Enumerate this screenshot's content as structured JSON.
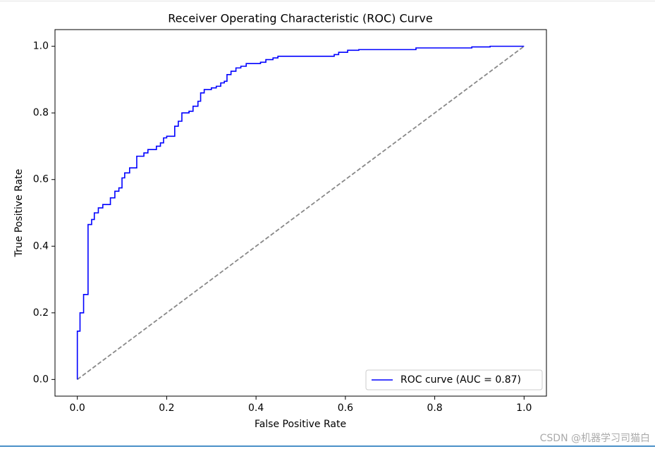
{
  "chart_data": {
    "type": "line",
    "title": "Receiver Operating Characteristic (ROC) Curve",
    "xlabel": "False Positive Rate",
    "ylabel": "True Positive Rate",
    "xlim": [
      -0.05,
      1.05
    ],
    "ylim": [
      -0.05,
      1.05
    ],
    "xticks": [
      {
        "value": 0,
        "label": "0.0"
      },
      0.2,
      0.4,
      0.6,
      0.8,
      {
        "value": 1,
        "label": "1.0"
      }
    ],
    "yticks": [
      {
        "value": 0,
        "label": "0.0"
      },
      0.2,
      0.4,
      0.6,
      0.8,
      {
        "value": 1,
        "label": "1.0"
      }
    ],
    "legend": "lower right",
    "series": [
      {
        "name": "ROC curve (AUC = 0.87)",
        "color": "#0000ff",
        "style": "solid",
        "x": [
          0,
          0,
          0.006,
          0.006,
          0.014,
          0.014,
          0.024,
          0.024,
          0.032,
          0.032,
          0.038,
          0.038,
          0.047,
          0.047,
          0.057,
          0.057,
          0.074,
          0.074,
          0.084,
          0.084,
          0.093,
          0.093,
          0.1,
          0.1,
          0.106,
          0.106,
          0.117,
          0.117,
          0.133,
          0.133,
          0.149,
          0.149,
          0.158,
          0.158,
          0.177,
          0.177,
          0.186,
          0.186,
          0.193,
          0.193,
          0.2,
          0.2,
          0.218,
          0.218,
          0.226,
          0.226,
          0.234,
          0.234,
          0.25,
          0.25,
          0.259,
          0.259,
          0.27,
          0.27,
          0.276,
          0.276,
          0.284,
          0.284,
          0.3,
          0.3,
          0.311,
          0.311,
          0.321,
          0.321,
          0.329,
          0.329,
          0.335,
          0.335,
          0.344,
          0.344,
          0.355,
          0.355,
          0.366,
          0.366,
          0.378,
          0.378,
          0.41,
          0.41,
          0.422,
          0.422,
          0.438,
          0.438,
          0.449,
          0.449,
          0.575,
          0.575,
          0.585,
          0.585,
          0.605,
          0.605,
          0.63,
          0.63,
          0.758,
          0.758,
          0.883,
          0.883,
          0.924,
          0.924,
          1
        ],
        "values": [
          0,
          0.145,
          0.145,
          0.2,
          0.2,
          0.255,
          0.255,
          0.465,
          0.465,
          0.48,
          0.48,
          0.5,
          0.5,
          0.515,
          0.515,
          0.525,
          0.525,
          0.545,
          0.545,
          0.565,
          0.565,
          0.575,
          0.575,
          0.605,
          0.605,
          0.62,
          0.62,
          0.635,
          0.635,
          0.67,
          0.67,
          0.68,
          0.68,
          0.69,
          0.69,
          0.7,
          0.7,
          0.71,
          0.71,
          0.725,
          0.725,
          0.73,
          0.73,
          0.76,
          0.76,
          0.775,
          0.775,
          0.8,
          0.8,
          0.805,
          0.805,
          0.82,
          0.82,
          0.835,
          0.835,
          0.86,
          0.86,
          0.87,
          0.87,
          0.875,
          0.875,
          0.88,
          0.88,
          0.89,
          0.89,
          0.895,
          0.895,
          0.915,
          0.915,
          0.925,
          0.925,
          0.935,
          0.935,
          0.94,
          0.94,
          0.948,
          0.948,
          0.952,
          0.952,
          0.96,
          0.96,
          0.965,
          0.965,
          0.97,
          0.97,
          0.975,
          0.975,
          0.982,
          0.982,
          0.988,
          0.988,
          0.99,
          0.99,
          0.995,
          0.995,
          0.998,
          0.998,
          1,
          1
        ]
      },
      {
        "color": "#888888",
        "style": "dashed",
        "x": [
          0,
          1
        ],
        "values": [
          0,
          1
        ]
      }
    ]
  },
  "watermark": "CSDN @机器学习司猫白"
}
